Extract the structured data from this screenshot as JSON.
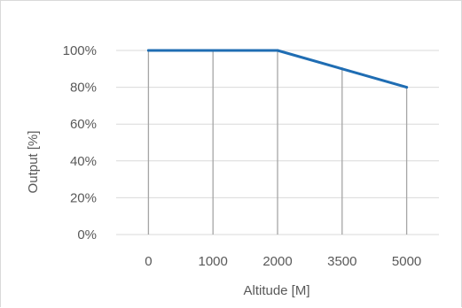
{
  "chart_data": {
    "type": "line",
    "title": "",
    "xlabel": "Altitude [M]",
    "ylabel": "Output [%]",
    "categories": [
      "0",
      "1000",
      "2000",
      "3500",
      "5000"
    ],
    "series": [
      {
        "values": [
          100,
          100,
          100,
          90,
          80
        ]
      }
    ],
    "ylim": [
      0,
      100
    ],
    "yticks": [
      "0%",
      "20%",
      "40%",
      "60%",
      "80%",
      "100%"
    ],
    "grid": "horizontal major gridlines; vertical drop lines from each point to the x axis",
    "legend": "none",
    "colors": {
      "line": "#1f6db3",
      "grid": "#d9d9d9",
      "drop_line": "#a6a6a6"
    }
  }
}
